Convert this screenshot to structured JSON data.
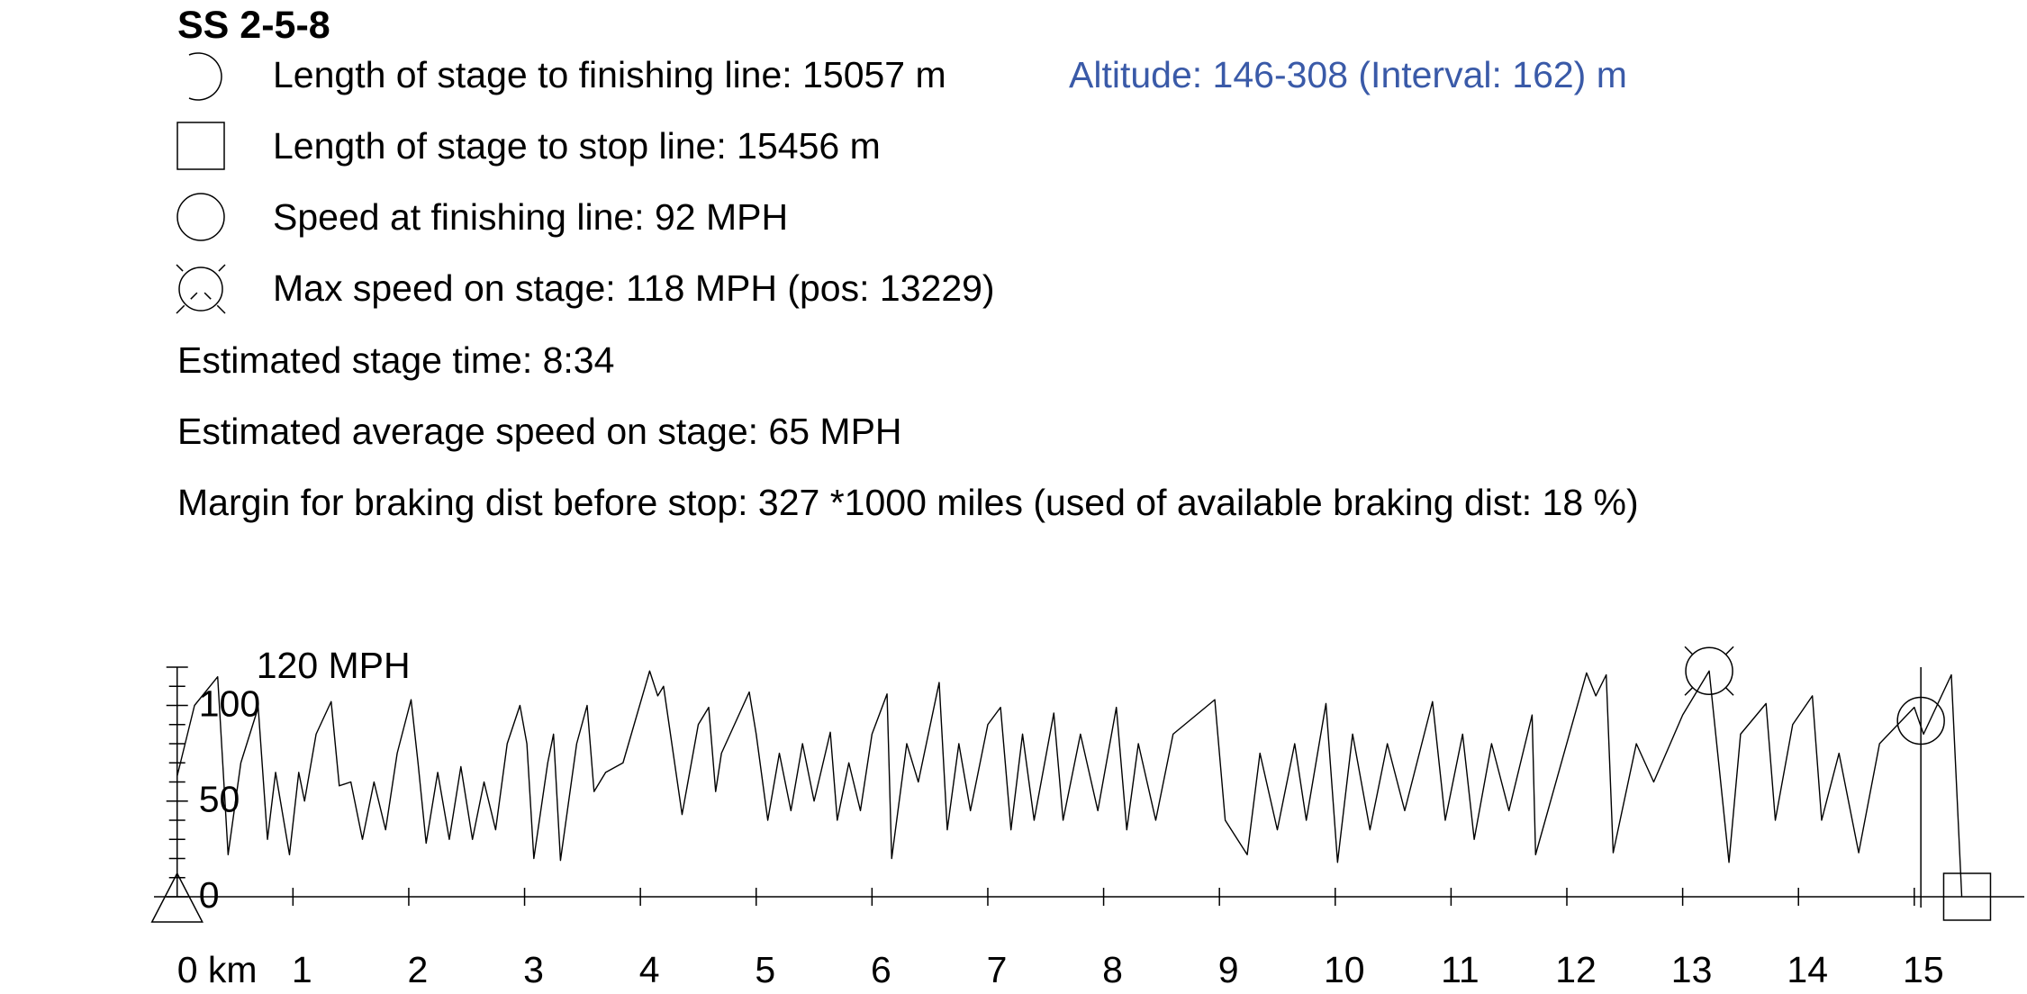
{
  "header": {
    "title": "SS 2-5-8",
    "finish_length": {
      "label": "Length of stage to finishing line:",
      "value": 15057,
      "unit": "m"
    },
    "altitude": "Altitude: 146-308 (Interval: 162) m",
    "stop_length": {
      "label": "Length of stage to stop line:",
      "value": 15456,
      "unit": "m"
    },
    "finish_speed": {
      "label": "Speed at finishing line:",
      "value": 92,
      "unit": "MPH"
    },
    "max_speed": {
      "label": "Max speed on stage:",
      "value": 118,
      "unit": "MPH",
      "pos_label": "(pos:",
      "pos": 13229,
      "pos_close": ")"
    },
    "stage_time": "Estimated stage time: 8:34",
    "avg_speed": "Estimated average speed on stage: 65 MPH",
    "margin": "Margin for braking dist before stop: 327 *1000 miles (used of available braking dist: 18 %)"
  },
  "chart_data": {
    "type": "line",
    "color": "#000000",
    "x": [
      0,
      0.15,
      0.35,
      0.44,
      0.55,
      0.7,
      0.78,
      0.85,
      0.97,
      1.05,
      1.1,
      1.2,
      1.33,
      1.4,
      1.5,
      1.6,
      1.7,
      1.8,
      1.9,
      2.02,
      2.08,
      2.15,
      2.25,
      2.35,
      2.45,
      2.55,
      2.65,
      2.75,
      2.85,
      2.96,
      3.02,
      3.08,
      3.2,
      3.25,
      3.31,
      3.45,
      3.54,
      3.6,
      3.7,
      3.85,
      4.08,
      4.15,
      4.2,
      4.36,
      4.5,
      4.59,
      4.65,
      4.7,
      4.94,
      5.0,
      5.1,
      5.2,
      5.3,
      5.4,
      5.5,
      5.64,
      5.7,
      5.8,
      5.9,
      6.0,
      6.13,
      6.17,
      6.3,
      6.4,
      6.58,
      6.65,
      6.75,
      6.85,
      7.0,
      7.11,
      7.2,
      7.3,
      7.4,
      7.57,
      7.65,
      7.8,
      7.95,
      8.11,
      8.2,
      8.3,
      8.45,
      8.6,
      8.96,
      9.05,
      9.24,
      9.35,
      9.5,
      9.65,
      9.75,
      9.92,
      10.02,
      10.15,
      10.3,
      10.45,
      10.6,
      10.84,
      10.95,
      11.1,
      11.2,
      11.35,
      11.5,
      11.7,
      11.73,
      12.17,
      12.25,
      12.34,
      12.4,
      12.6,
      12.75,
      13.0,
      13.229,
      13.4,
      13.5,
      13.72,
      13.8,
      13.95,
      14.12,
      14.2,
      14.35,
      14.52,
      14.7,
      15.0,
      15.08,
      15.32,
      15.41
    ],
    "values": [
      63,
      100,
      115,
      22,
      70,
      99,
      30,
      65,
      22,
      65,
      50,
      85,
      102,
      58,
      60,
      30,
      60,
      35,
      75,
      103,
      70,
      28,
      65,
      30,
      68,
      30,
      60,
      35,
      80,
      100,
      80,
      20,
      70,
      85,
      19,
      80,
      100,
      55,
      65,
      70,
      118,
      105,
      110,
      43,
      90,
      99,
      55,
      75,
      107,
      85,
      40,
      75,
      45,
      80,
      50,
      86,
      40,
      70,
      45,
      85,
      106,
      20,
      80,
      60,
      112,
      35,
      80,
      45,
      90,
      99,
      35,
      85,
      40,
      96,
      40,
      85,
      45,
      99,
      35,
      80,
      40,
      85,
      103,
      40,
      22,
      75,
      35,
      80,
      40,
      101,
      18,
      85,
      35,
      80,
      45,
      102,
      40,
      85,
      30,
      80,
      45,
      95,
      22,
      117,
      105,
      116,
      23,
      80,
      60,
      95,
      118,
      18,
      85,
      101,
      40,
      90,
      105,
      40,
      75,
      23,
      80,
      99,
      85,
      116,
      0
    ],
    "xlim": [
      -0.2,
      15.95
    ],
    "ylim": [
      0,
      120
    ],
    "xticks": [
      {
        "value": 0,
        "label": "0 km"
      },
      1,
      2,
      3,
      4,
      5,
      6,
      7,
      8,
      9,
      10,
      11,
      12,
      13,
      14,
      15
    ],
    "yticks": [
      0,
      50,
      100,
      {
        "value": 120,
        "label": "120 MPH"
      }
    ],
    "y_minor_ticks": [
      10,
      20,
      30,
      40,
      60,
      70,
      80,
      90,
      110
    ]
  }
}
